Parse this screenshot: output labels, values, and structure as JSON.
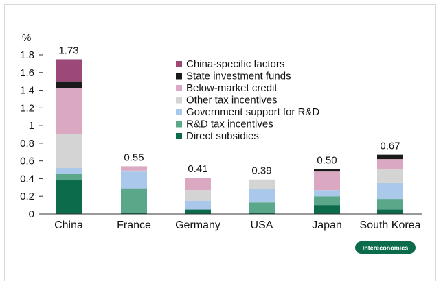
{
  "chart_data": {
    "type": "bar",
    "stacked": true,
    "unit_label": "%",
    "categories": [
      "China",
      "France",
      "Germany",
      "USA",
      "Japan",
      "South Korea"
    ],
    "totals": [
      "1.73",
      "0.55",
      "0.41",
      "0.39",
      "0.50",
      "0.67"
    ],
    "ylim": [
      0,
      1.8
    ],
    "yticks": [
      "0",
      "0.2",
      "0.4",
      "0.6",
      "0.8",
      "1",
      "1.2",
      "1.4",
      "1.6",
      "1.8"
    ],
    "ytick_values": [
      0,
      0.2,
      0.4,
      0.6,
      0.8,
      1.0,
      1.2,
      1.4,
      1.6,
      1.8
    ],
    "series": [
      {
        "name": "Direct subsidies",
        "color": "#0b6b4a",
        "values": [
          0.38,
          0.01,
          0.05,
          0.01,
          0.1,
          0.05
        ]
      },
      {
        "name": "R&D tax incentives",
        "color": "#5aa78a",
        "values": [
          0.07,
          0.28,
          0.0,
          0.12,
          0.1,
          0.12
        ]
      },
      {
        "name": "Government support for R&D",
        "color": "#a9c8ea",
        "values": [
          0.07,
          0.19,
          0.1,
          0.15,
          0.07,
          0.18
        ]
      },
      {
        "name": "Other tax incentives",
        "color": "#d4d4d4",
        "values": [
          0.38,
          0.01,
          0.12,
          0.11,
          0.0,
          0.16
        ]
      },
      {
        "name": "Below-market credit",
        "color": "#dba8c2",
        "values": [
          0.52,
          0.05,
          0.14,
          0.0,
          0.21,
          0.11
        ]
      },
      {
        "name": "State investment funds",
        "color": "#1a1a1a",
        "values": [
          0.08,
          0.0,
          0.0,
          0.0,
          0.03,
          0.05
        ]
      },
      {
        "name": "China-specific factors",
        "color": "#9c4878",
        "values": [
          0.25,
          0.0,
          0.0,
          0.0,
          0.0,
          0.0
        ]
      }
    ],
    "legend_position": "top-center",
    "grid": false
  },
  "badge": "Intereconomics"
}
